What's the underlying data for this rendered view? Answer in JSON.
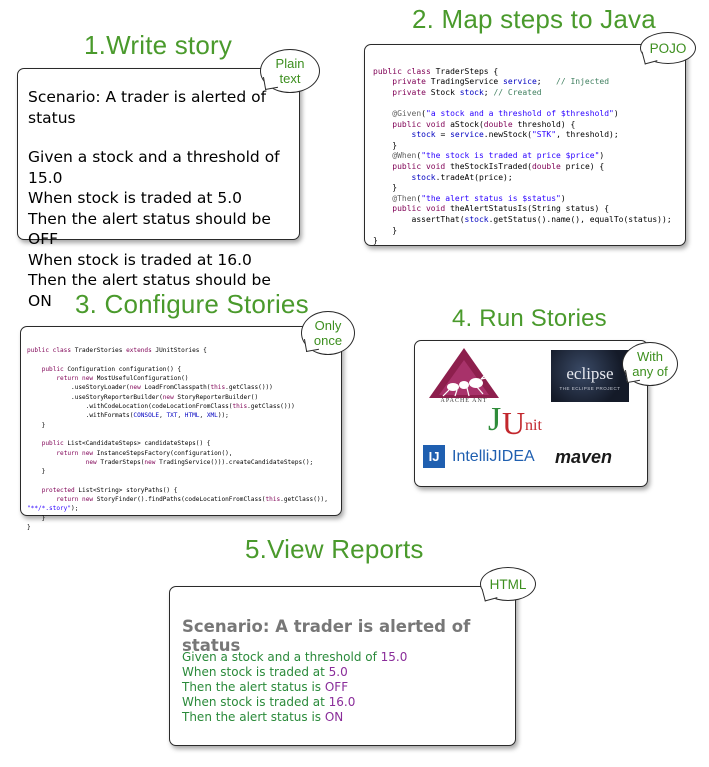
{
  "step1": {
    "heading": "1.Write story",
    "bubble_line1": "Plain",
    "bubble_line2": "text",
    "title": "Scenario:  A trader is alerted of status",
    "lines": [
      "Given a stock and a threshold of 15.0",
      "When stock is traded at 5.0",
      "Then the alert status should be OFF",
      "When stock is traded at 16.0",
      "Then the alert status should be ON"
    ]
  },
  "step2": {
    "heading": "2. Map steps to Java",
    "bubble": "POJO",
    "code": [
      "public class TraderSteps {",
      "    private TradingService service;   // Injected",
      "    private Stock stock; // Created",
      "",
      "    @Given(\"a stock and a threshold of $threshold\")",
      "    public void aStock(double threshold) {",
      "        stock = service.newStock(\"STK\", threshold);",
      "    }",
      "    @When(\"the stock is traded at price $price\")",
      "    public void theStockIsTraded(double price) {",
      "        stock.tradeAt(price);",
      "    }",
      "    @Then(\"the alert status is $status\")",
      "    public void theAlertStatusIs(String status) {",
      "        assertThat(stock.getStatus().name(), equalTo(status));",
      "    }",
      "}"
    ]
  },
  "step3": {
    "heading": "3. Configure Stories",
    "bubble_line1": "Only",
    "bubble_line2": "once",
    "code": [
      "public class TraderStories extends JUnitStories {",
      "",
      "    public Configuration configuration() {",
      "        return new MostUsefulConfiguration()",
      "            .useStoryLoader(new LoadFromClasspath(this.getClass()))",
      "            .useStoryReporterBuilder(new StoryReporterBuilder()",
      "                .withCodeLocation(codeLocationFromClass(this.getClass()))",
      "                .withFormats(CONSOLE, TXT, HTML, XML));",
      "    }",
      "",
      "    public List<CandidateSteps> candidateSteps() {",
      "        return new InstanceStepsFactory(configuration(),",
      "                new TraderSteps(new TradingService())).createCandidateSteps();",
      "    }",
      "",
      "    protected List<String> storyPaths() {",
      "        return new StoryFinder().findPaths(codeLocationFromClass(this.getClass()),",
      "\"**/*.story\");",
      "    }",
      "}"
    ]
  },
  "step4": {
    "heading": "4. Run Stories",
    "bubble_line1": "With",
    "bubble_line2": "any of",
    "tools": {
      "ant_caption": "APACHE ANT",
      "eclipse_name": "eclipse",
      "eclipse_sub": "THE ECLIPSE PROJECT",
      "junit_j": "J",
      "junit_u": "U",
      "junit_nit": "nit",
      "intellij_icon": "IJ",
      "intellij_name": "IntelliJIDEA",
      "maven_name": "maven"
    },
    "colors": {
      "ant": "#8d1f4d",
      "junit_j": "#2f8c3a",
      "junit_u": "#c2272d",
      "intellij": "#1f5fb0"
    }
  },
  "step5": {
    "heading": "5.View Reports",
    "bubble": "HTML",
    "title": "Scenario: A trader is alerted of status",
    "lines": [
      {
        "text": "Given a stock and a threshold of ",
        "value": "15.0"
      },
      {
        "text": "When stock is traded at ",
        "value": "5.0"
      },
      {
        "text": "Then the alert status is ",
        "value": "OFF"
      },
      {
        "text": "When stock is traded at ",
        "value": "16.0"
      },
      {
        "text": "Then the alert status is ",
        "value": "ON"
      }
    ]
  },
  "colors": {
    "heading": "#4a9a2c",
    "bubble_text": "#3d8f1f",
    "report_text": "#2a8a3a",
    "report_value": "#8a2d9a"
  }
}
